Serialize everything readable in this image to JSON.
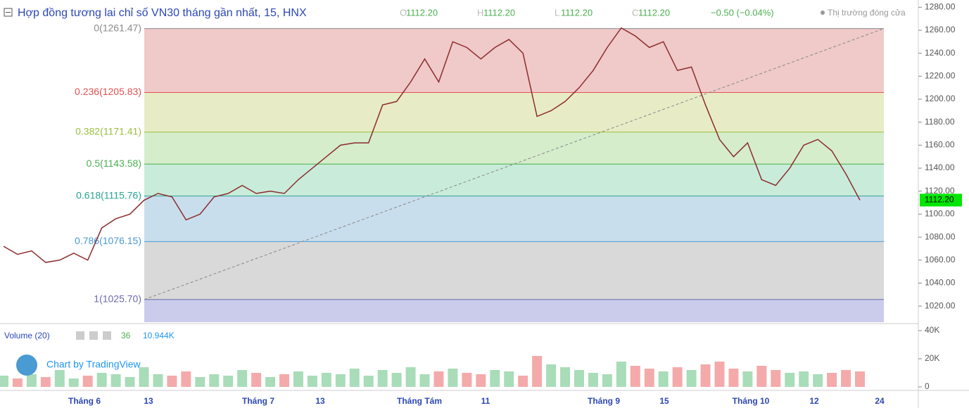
{
  "chart_data": {
    "type": "line",
    "title": "Hợp đồng tương lai chỉ số VN30 tháng gần nhất, 15, HNX",
    "ohlc": [
      {
        "key": "O",
        "value": "1112.20"
      },
      {
        "key": "H",
        "value": "1112.20"
      },
      {
        "key": "L",
        "value": "1112.20"
      },
      {
        "key": "C",
        "value": "1112.20"
      }
    ],
    "change": "−0.50 (−0.04%)",
    "status": "Thị trường đóng cửa",
    "last_price": {
      "value": 1112.2,
      "label": "1112.20"
    },
    "color": "#8b2d2d",
    "values": [
      1072,
      1065,
      1068,
      1058,
      1060,
      1066,
      1060,
      1088,
      1096,
      1100,
      1112,
      1118,
      1115,
      1095,
      1100,
      1115,
      1118,
      1125,
      1118,
      1120,
      1118,
      1130,
      1140,
      1150,
      1160,
      1162,
      1162,
      1195,
      1198,
      1215,
      1235,
      1215,
      1250,
      1245,
      1235,
      1245,
      1252,
      1240,
      1185,
      1190,
      1198,
      1210,
      1225,
      1245,
      1262,
      1255,
      1245,
      1250,
      1225,
      1228,
      1195,
      1165,
      1150,
      1162,
      1130,
      1125,
      1140,
      1160,
      1165,
      1155,
      1135,
      1112.2
    ],
    "ylim": [
      1006,
      1286.3
    ],
    "yticks": [
      {
        "value": 1280,
        "label": "1280.00"
      },
      {
        "value": 1260,
        "label": "1260.00"
      },
      {
        "value": 1240,
        "label": "1240.00"
      },
      {
        "value": 1220,
        "label": "1220.00"
      },
      {
        "value": 1200,
        "label": "1200.00"
      },
      {
        "value": 1180,
        "label": "1180.00"
      },
      {
        "value": 1160,
        "label": "1160.00"
      },
      {
        "value": 1140,
        "label": "1140.00"
      },
      {
        "value": 1120,
        "label": "1120.00"
      },
      {
        "value": 1100,
        "label": "1100.00"
      },
      {
        "value": 1080,
        "label": "1080.00"
      },
      {
        "value": 1060,
        "label": "1060.00"
      },
      {
        "value": 1040,
        "label": "1040.00"
      },
      {
        "value": 1020,
        "label": "1020.00"
      }
    ],
    "fib_levels": [
      {
        "label": "0(1261.47)",
        "value": 1261.47,
        "color": "#8a8a8a",
        "fill": "#f0c9c9"
      },
      {
        "label": "0.236(1205.83)",
        "value": 1205.83,
        "color": "#e05252",
        "fill": "#e8ecc6"
      },
      {
        "label": "0.382(1171.41)",
        "value": 1171.41,
        "color": "#9bbf3f",
        "fill": "#d5edcb"
      },
      {
        "label": "0.5(1143.58)",
        "value": 1143.58,
        "color": "#4caf50",
        "fill": "#c9ecda"
      },
      {
        "label": "0.618(1115.76)",
        "value": 1115.76,
        "color": "#2aa594",
        "fill": "#c9deec"
      },
      {
        "label": "0.786(1076.15)",
        "value": 1076.15,
        "color": "#4a9ad4",
        "fill": "#d9d9d9"
      },
      {
        "label": "1(1025.70)",
        "value": 1025.7,
        "color": "#6a6aad",
        "fill": "#cbcbec"
      }
    ],
    "volume": {
      "label": "Volume (20)",
      "count": "36",
      "last": "10.944K",
      "values": [
        8,
        6,
        9,
        7,
        12,
        6,
        8,
        10,
        9,
        7,
        14,
        9,
        8,
        11,
        7,
        9,
        8,
        12,
        10,
        7,
        9,
        11,
        8,
        10,
        9,
        13,
        8,
        12,
        10,
        14,
        9,
        11,
        13,
        10,
        9,
        12,
        11,
        8,
        22,
        16,
        14,
        12,
        10,
        9,
        18,
        15,
        13,
        11,
        14,
        12,
        16,
        18,
        13,
        11,
        15,
        12,
        10,
        11,
        9,
        10,
        12,
        11
      ],
      "ylim": [
        -1,
        44
      ],
      "yticks": [
        {
          "value": 40,
          "label": "40K"
        },
        {
          "value": 20,
          "label": "20K"
        },
        0
      ]
    },
    "watermark": "Chart by TradingView",
    "x_labels": [
      "Tháng 6",
      "13",
      "Tháng 7",
      "13",
      "Tháng Tám",
      "11",
      "Tháng 9",
      "15",
      "Tháng 10",
      "12",
      "24"
    ]
  }
}
